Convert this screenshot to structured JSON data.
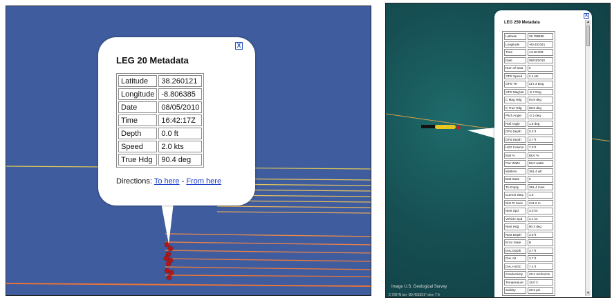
{
  "left_balloon": {
    "title": "LEG 20 Metadata",
    "close_label": "X",
    "rows": [
      {
        "key": "Latitude",
        "value": "38.260121"
      },
      {
        "key": "Longitude",
        "value": "-8.806385"
      },
      {
        "key": "Date",
        "value": "08/05/2010"
      },
      {
        "key": "Time",
        "value": "16:42:17Z"
      },
      {
        "key": "Depth",
        "value": "0.0 ft"
      },
      {
        "key": "Speed",
        "value": "2.0 kts"
      },
      {
        "key": "True Hdg",
        "value": "90.4 deg"
      }
    ],
    "directions_label": "Directions:",
    "to_here": "To here",
    "separator": "-",
    "from_here": "From here"
  },
  "right_balloon": {
    "title": "LEG 259 Metadata",
    "close_label": "X",
    "rows": [
      {
        "key": "Latitude",
        "value": "25.798698"
      },
      {
        "key": "Longitude",
        "value": "-80.453341"
      },
      {
        "key": "Time",
        "value": "14:40:30Z"
      },
      {
        "key": "Date",
        "value": "09/03/2010"
      },
      {
        "key": "Num of Sats",
        "value": "0"
      },
      {
        "key": "GPS Speed",
        "value": "2.4 kts"
      },
      {
        "key": "GPS TH",
        "value": "217.3 Deg"
      },
      {
        "key": "GPS MagVar",
        "value": "-5.7 Deg"
      },
      {
        "key": "C Mag Hdg",
        "value": "94.8 deg"
      },
      {
        "key": "C True Hdg",
        "value": "88.8 deg"
      },
      {
        "key": "Pitch Angle",
        "value": "-2.2 deg"
      },
      {
        "key": "Roll Angle",
        "value": "1.6 deg"
      },
      {
        "key": "DFS Depth",
        "value": "0.3 ft"
      },
      {
        "key": "DTB Depth",
        "value": "3.7 ft"
      },
      {
        "key": "H2O Column",
        "value": "7.0 ft"
      },
      {
        "key": "Batt %",
        "value": "88.0 %"
      },
      {
        "key": "Pwr Watts",
        "value": "66.0 watts"
      },
      {
        "key": "WattHrs",
        "value": "381.4 wh"
      },
      {
        "key": "Batt State",
        "value": "0"
      },
      {
        "key": "To Empty",
        "value": "381.4 mins"
      },
      {
        "key": "Current Step",
        "value": "1.0"
      },
      {
        "key": "Dist To Next",
        "value": "241.6 m"
      },
      {
        "key": "Next Spd",
        "value": "3.0 kn"
      },
      {
        "key": "Vehicle Spd",
        "value": "3.1 kn"
      },
      {
        "key": "Next Hdg",
        "value": "90.3 deg"
      },
      {
        "key": "Next Depth",
        "value": "3.0 ft"
      },
      {
        "key": "Error State",
        "value": "N"
      },
      {
        "key": "DVL Depth",
        "value": "3.7 ft"
      },
      {
        "key": "DVL Alt",
        "value": "3.7 ft"
      },
      {
        "key": "DVL H2OC",
        "value": "7.4 ft"
      },
      {
        "key": "Conductivity",
        "value": "49.2 mmho/cm"
      },
      {
        "key": "Temperature",
        "value": "18.0 C"
      },
      {
        "key": "Salinity",
        "value": "26.9 psi"
      }
    ],
    "credit": "Image U.S. Geological Survey",
    "coords": "2.796°N  lon -80.453391°  elev  7 ft"
  },
  "colors": {
    "left_bg": "#3f5c9e",
    "line_orange": "#e8743a",
    "line_yellow": "#e7c45c",
    "marker_red": "#b01818",
    "link_blue": "#1a3cc8"
  }
}
